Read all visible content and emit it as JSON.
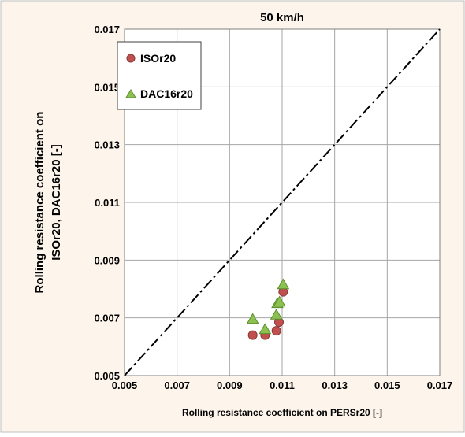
{
  "chart_data": {
    "type": "scatter",
    "title": "50 km/h",
    "xlabel": "Rolling resistance coefficient on PERSr20 [-]",
    "ylabel_line1": "Rolling resistance coefficient on",
    "ylabel_line2": "ISOr20, DAC16r20  [-]",
    "xlim": [
      0.005,
      0.017
    ],
    "ylim": [
      0.005,
      0.017
    ],
    "xticks": [
      0.005,
      0.007,
      0.009,
      0.011,
      0.013,
      0.015,
      0.017
    ],
    "yticks": [
      0.005,
      0.007,
      0.009,
      0.011,
      0.013,
      0.015,
      0.017
    ],
    "xtick_labels": [
      "0.005",
      "0.007",
      "0.009",
      "0.011",
      "0.013",
      "0.015",
      "0.017"
    ],
    "ytick_labels": [
      "0.005",
      "0.007",
      "0.009",
      "0.011",
      "0.013",
      "0.015",
      "0.017"
    ],
    "grid": true,
    "legend_position": "top-left",
    "reference_line": {
      "style": "dash-dot",
      "color": "#000000",
      "from": [
        0.005,
        0.005
      ],
      "to": [
        0.017,
        0.017
      ]
    },
    "series": [
      {
        "name": "ISOr20",
        "marker": "circle",
        "color": "#c0504d",
        "stroke": "#8b3a38",
        "x": [
          0.00988,
          0.01035,
          0.01078,
          0.01088,
          0.01104
        ],
        "y": [
          0.0064,
          0.0064,
          0.00655,
          0.00685,
          0.0079
        ]
      },
      {
        "name": "DAC16r20",
        "marker": "triangle",
        "color": "#8cc152",
        "stroke": "#5b8e2d",
        "x": [
          0.00988,
          0.01035,
          0.01078,
          0.01082,
          0.0109,
          0.01104
        ],
        "y": [
          0.00695,
          0.0066,
          0.0071,
          0.0075,
          0.00755,
          0.00815
        ]
      }
    ]
  },
  "colors": {
    "outer_background": "#fdf5ec",
    "plot_background": "#ffffff",
    "grid": "#a6a6a6",
    "text": "#000000"
  }
}
